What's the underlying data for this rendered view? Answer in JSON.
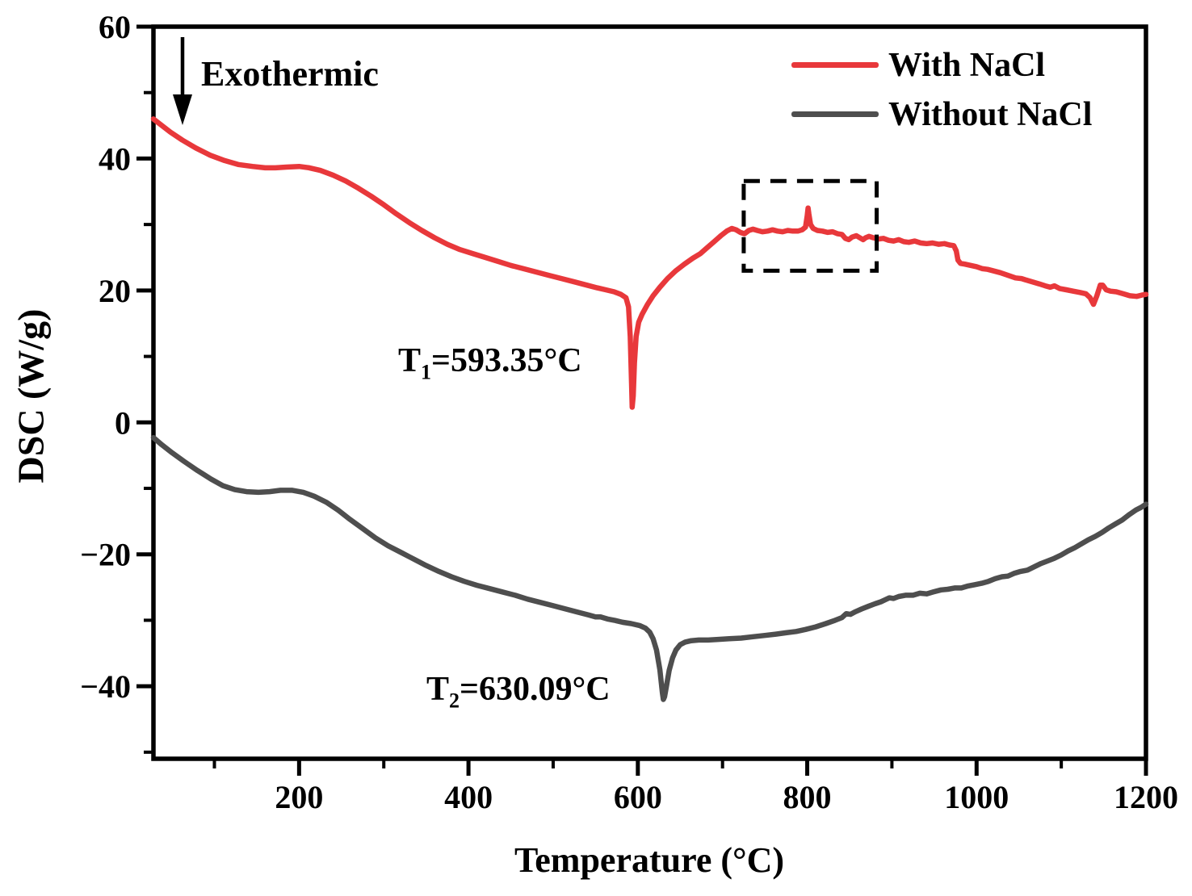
{
  "chart_data": {
    "type": "line",
    "title": "",
    "xlabel": "Temperature (°C)",
    "ylabel": "DSC (W/g)",
    "x_range": [
      28,
      1200
    ],
    "y_range": [
      -51,
      60
    ],
    "grid": false,
    "background": "#ffffff",
    "axis_color": "#000000",
    "x_ticks": {
      "major": [
        {
          "v": 200,
          "label": "200"
        },
        {
          "v": 400,
          "label": "400"
        },
        {
          "v": 600,
          "label": "600"
        },
        {
          "v": 800,
          "label": "800"
        },
        {
          "v": 1000,
          "label": "1000"
        },
        {
          "v": 1200,
          "label": "1200"
        }
      ],
      "minor": [
        100,
        300,
        500,
        700,
        900,
        1100
      ]
    },
    "y_ticks": {
      "major": [
        {
          "v": 60,
          "label": "60"
        },
        {
          "v": 40,
          "label": "40"
        },
        {
          "v": 20,
          "label": "20"
        },
        {
          "v": 0,
          "label": "0"
        },
        {
          "v": -20,
          "label": "−20"
        },
        {
          "v": -40,
          "label": "−40"
        }
      ],
      "minor": [
        50,
        30,
        10,
        -10,
        -30,
        -50
      ]
    },
    "legend": {
      "position": "top-right",
      "entries": [
        {
          "label": "With NaCl",
          "color": "#E8383B"
        },
        {
          "label": "Without NaCl",
          "color": "#4E4E4E"
        }
      ]
    },
    "annotations": {
      "exothermic": {
        "label": "Exothermic",
        "arrow_direction": "down"
      },
      "t1": {
        "base": "T",
        "sub": "1",
        "rest": "=593.35°C",
        "peak_temp_c": 593.35,
        "series": "With NaCl"
      },
      "t2": {
        "base": "T",
        "sub": "2",
        "rest": "=630.09°C",
        "peak_temp_c": 630.09,
        "series": "Without NaCl"
      }
    },
    "dashed_box": {
      "x0": 725,
      "x1": 882,
      "y0": 23.0,
      "y1": 36.6
    },
    "series": [
      {
        "name": "With NaCl",
        "color": "#E8383B",
        "points": [
          [
            28,
            46
          ],
          [
            36,
            45.2
          ],
          [
            48,
            44
          ],
          [
            62,
            42.8
          ],
          [
            78,
            41.6
          ],
          [
            95,
            40.5
          ],
          [
            112,
            39.7
          ],
          [
            128,
            39.1
          ],
          [
            145,
            38.8
          ],
          [
            160,
            38.6
          ],
          [
            172,
            38.6
          ],
          [
            185,
            38.7
          ],
          [
            200,
            38.8
          ],
          [
            212,
            38.6
          ],
          [
            225,
            38.2
          ],
          [
            240,
            37.5
          ],
          [
            255,
            36.6
          ],
          [
            270,
            35.5
          ],
          [
            285,
            34.3
          ],
          [
            300,
            33
          ],
          [
            315,
            31.6
          ],
          [
            330,
            30.3
          ],
          [
            345,
            29.1
          ],
          [
            360,
            28
          ],
          [
            375,
            27
          ],
          [
            390,
            26.2
          ],
          [
            405,
            25.6
          ],
          [
            420,
            25
          ],
          [
            435,
            24.4
          ],
          [
            450,
            23.8
          ],
          [
            465,
            23.3
          ],
          [
            480,
            22.8
          ],
          [
            495,
            22.3
          ],
          [
            510,
            21.8
          ],
          [
            525,
            21.3
          ],
          [
            540,
            20.8
          ],
          [
            552,
            20.4
          ],
          [
            562,
            20.1
          ],
          [
            572,
            19.8
          ],
          [
            580,
            19.4
          ],
          [
            586,
            18.9
          ],
          [
            589,
            17.5
          ],
          [
            591,
            13
          ],
          [
            592.5,
            6
          ],
          [
            593.35,
            2.3
          ],
          [
            594.5,
            4
          ],
          [
            596,
            9
          ],
          [
            598,
            13
          ],
          [
            601,
            15.2
          ],
          [
            605,
            16.4
          ],
          [
            611,
            17.8
          ],
          [
            618,
            19.2
          ],
          [
            626,
            20.5
          ],
          [
            635,
            21.8
          ],
          [
            645,
            23
          ],
          [
            655,
            24
          ],
          [
            665,
            24.9
          ],
          [
            674,
            25.6
          ],
          [
            682,
            26.5
          ],
          [
            690,
            27.4
          ],
          [
            698,
            28.3
          ],
          [
            705,
            29
          ],
          [
            711,
            29.4
          ],
          [
            716,
            29.2
          ],
          [
            721,
            28.8
          ],
          [
            726,
            28.6
          ],
          [
            731,
            29.1
          ],
          [
            736,
            29.3
          ],
          [
            741,
            29.1
          ],
          [
            747,
            28.9
          ],
          [
            753,
            29
          ],
          [
            759,
            29.2
          ],
          [
            765,
            29
          ],
          [
            771,
            28.9
          ],
          [
            777,
            29.1
          ],
          [
            783,
            29
          ],
          [
            789,
            29
          ],
          [
            794,
            29.2
          ],
          [
            798,
            29.6
          ],
          [
            800,
            31.3
          ],
          [
            801,
            32.5
          ],
          [
            802,
            31.6
          ],
          [
            804,
            30
          ],
          [
            807,
            29.4
          ],
          [
            812,
            29.1
          ],
          [
            818,
            29
          ],
          [
            824,
            28.8
          ],
          [
            830,
            28.9
          ],
          [
            836,
            28.6
          ],
          [
            841,
            28.5
          ],
          [
            845,
            27.9
          ],
          [
            849,
            27.7
          ],
          [
            853,
            28.1
          ],
          [
            858,
            28.3
          ],
          [
            862,
            28
          ],
          [
            866,
            27.7
          ],
          [
            869,
            28
          ],
          [
            873,
            28.2
          ],
          [
            878,
            28
          ],
          [
            884,
            27.8
          ],
          [
            890,
            27.9
          ],
          [
            896,
            27.6
          ],
          [
            902,
            27.5
          ],
          [
            908,
            27.7
          ],
          [
            914,
            27.4
          ],
          [
            920,
            27.3
          ],
          [
            927,
            27.5
          ],
          [
            934,
            27.2
          ],
          [
            941,
            27.1
          ],
          [
            948,
            27.2
          ],
          [
            955,
            27
          ],
          [
            962,
            27.1
          ],
          [
            968,
            26.9
          ],
          [
            973,
            26.8
          ],
          [
            976,
            26
          ],
          [
            978,
            24.6
          ],
          [
            981,
            24.1
          ],
          [
            986,
            24
          ],
          [
            993,
            23.8
          ],
          [
            1000,
            23.6
          ],
          [
            1007,
            23.3
          ],
          [
            1013,
            23.2
          ],
          [
            1019,
            23
          ],
          [
            1028,
            22.7
          ],
          [
            1037,
            22.3
          ],
          [
            1046,
            21.9
          ],
          [
            1053,
            21.8
          ],
          [
            1058,
            21.6
          ],
          [
            1066,
            21.3
          ],
          [
            1074,
            21
          ],
          [
            1081,
            20.7
          ],
          [
            1087,
            20.5
          ],
          [
            1092,
            20.7
          ],
          [
            1098,
            20.3
          ],
          [
            1106,
            20.1
          ],
          [
            1114,
            19.9
          ],
          [
            1122,
            19.7
          ],
          [
            1129,
            19.5
          ],
          [
            1134,
            18.9
          ],
          [
            1138,
            17.9
          ],
          [
            1142,
            19.2
          ],
          [
            1146,
            20.8
          ],
          [
            1149,
            20.8
          ],
          [
            1153,
            20.1
          ],
          [
            1158,
            19.9
          ],
          [
            1165,
            19.8
          ],
          [
            1173,
            19.5
          ],
          [
            1181,
            19.2
          ],
          [
            1189,
            19.1
          ],
          [
            1195,
            19.3
          ],
          [
            1200,
            19.4
          ]
        ]
      },
      {
        "name": "Without NaCl",
        "color": "#4E4E4E",
        "points": [
          [
            28,
            -2.3
          ],
          [
            38,
            -3.4
          ],
          [
            50,
            -4.6
          ],
          [
            64,
            -5.9
          ],
          [
            80,
            -7.3
          ],
          [
            96,
            -8.6
          ],
          [
            110,
            -9.6
          ],
          [
            124,
            -10.2
          ],
          [
            138,
            -10.5
          ],
          [
            152,
            -10.6
          ],
          [
            165,
            -10.5
          ],
          [
            178,
            -10.3
          ],
          [
            192,
            -10.3
          ],
          [
            205,
            -10.6
          ],
          [
            218,
            -11.2
          ],
          [
            232,
            -12.1
          ],
          [
            246,
            -13.3
          ],
          [
            260,
            -14.7
          ],
          [
            275,
            -16.1
          ],
          [
            290,
            -17.5
          ],
          [
            305,
            -18.7
          ],
          [
            320,
            -19.7
          ],
          [
            335,
            -20.7
          ],
          [
            350,
            -21.7
          ],
          [
            365,
            -22.6
          ],
          [
            380,
            -23.4
          ],
          [
            395,
            -24.1
          ],
          [
            410,
            -24.7
          ],
          [
            425,
            -25.2
          ],
          [
            440,
            -25.7
          ],
          [
            455,
            -26.2
          ],
          [
            470,
            -26.8
          ],
          [
            485,
            -27.3
          ],
          [
            500,
            -27.8
          ],
          [
            515,
            -28.3
          ],
          [
            530,
            -28.8
          ],
          [
            542,
            -29.2
          ],
          [
            550,
            -29.5
          ],
          [
            556,
            -29.5
          ],
          [
            564,
            -29.8
          ],
          [
            572,
            -30
          ],
          [
            582,
            -30.3
          ],
          [
            592,
            -30.5
          ],
          [
            602,
            -30.8
          ],
          [
            609,
            -31.2
          ],
          [
            614,
            -31.8
          ],
          [
            618,
            -32.8
          ],
          [
            622,
            -34.5
          ],
          [
            626,
            -37.5
          ],
          [
            629,
            -41
          ],
          [
            630.09,
            -42
          ],
          [
            631.5,
            -41.6
          ],
          [
            634,
            -39.8
          ],
          [
            637,
            -37.6
          ],
          [
            641,
            -35.7
          ],
          [
            645,
            -34.5
          ],
          [
            650,
            -33.7
          ],
          [
            656,
            -33.3
          ],
          [
            663,
            -33.1
          ],
          [
            672,
            -33
          ],
          [
            683,
            -33
          ],
          [
            695,
            -32.9
          ],
          [
            708,
            -32.8
          ],
          [
            722,
            -32.7
          ],
          [
            736,
            -32.5
          ],
          [
            750,
            -32.3
          ],
          [
            763,
            -32.1
          ],
          [
            775,
            -31.9
          ],
          [
            787,
            -31.7
          ],
          [
            798,
            -31.4
          ],
          [
            810,
            -31
          ],
          [
            822,
            -30.5
          ],
          [
            833,
            -30
          ],
          [
            841,
            -29.6
          ],
          [
            846,
            -29
          ],
          [
            851,
            -29.1
          ],
          [
            857,
            -28.7
          ],
          [
            864,
            -28.3
          ],
          [
            872,
            -27.9
          ],
          [
            880,
            -27.5
          ],
          [
            887,
            -27.2
          ],
          [
            892,
            -26.9
          ],
          [
            897,
            -26.6
          ],
          [
            902,
            -26.7
          ],
          [
            908,
            -26.4
          ],
          [
            916,
            -26.2
          ],
          [
            925,
            -26.2
          ],
          [
            933,
            -25.9
          ],
          [
            941,
            -26
          ],
          [
            949,
            -25.7
          ],
          [
            958,
            -25.4
          ],
          [
            966,
            -25.3
          ],
          [
            974,
            -25.1
          ],
          [
            982,
            -25.1
          ],
          [
            990,
            -24.8
          ],
          [
            998,
            -24.6
          ],
          [
            1006,
            -24.4
          ],
          [
            1014,
            -24.1
          ],
          [
            1022,
            -23.7
          ],
          [
            1030,
            -23.4
          ],
          [
            1037,
            -23.3
          ],
          [
            1044,
            -22.9
          ],
          [
            1052,
            -22.6
          ],
          [
            1060,
            -22.4
          ],
          [
            1068,
            -21.9
          ],
          [
            1076,
            -21.4
          ],
          [
            1084,
            -21
          ],
          [
            1092,
            -20.6
          ],
          [
            1100,
            -20.1
          ],
          [
            1108,
            -19.5
          ],
          [
            1116,
            -19
          ],
          [
            1124,
            -18.4
          ],
          [
            1132,
            -17.8
          ],
          [
            1140,
            -17.3
          ],
          [
            1148,
            -16.7
          ],
          [
            1156,
            -16
          ],
          [
            1164,
            -15.4
          ],
          [
            1172,
            -14.8
          ],
          [
            1180,
            -14
          ],
          [
            1188,
            -13.3
          ],
          [
            1194,
            -12.9
          ],
          [
            1200,
            -12.4
          ]
        ]
      }
    ]
  }
}
